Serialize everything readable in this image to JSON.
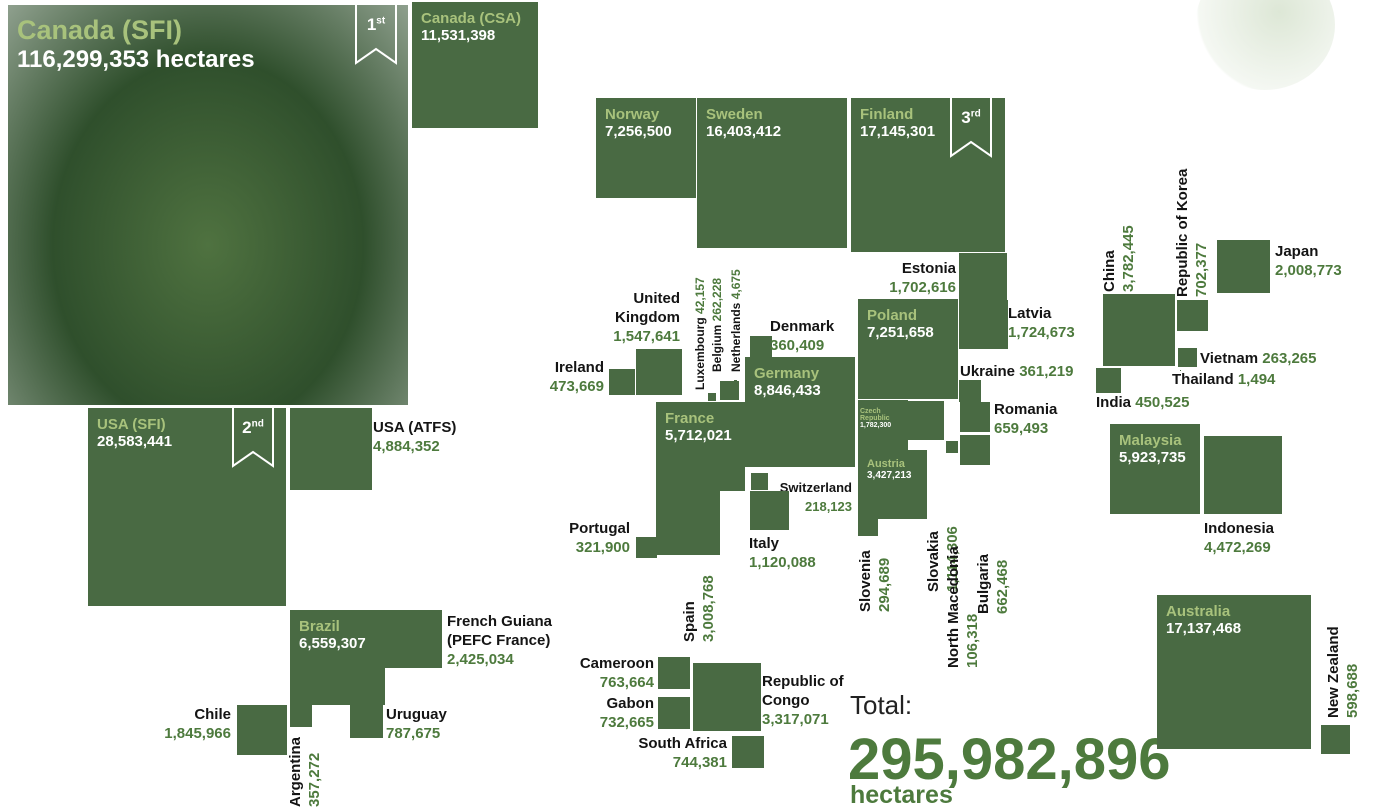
{
  "chart_data": {
    "type": "proportional-squares",
    "categories": [
      "Canada (SFI)",
      "Canada (CSA)",
      "Norway",
      "Sweden",
      "Finland",
      "USA (SFI)",
      "USA (ATFS)",
      "Estonia",
      "Latvia",
      "Poland",
      "Germany",
      "France",
      "United Kingdom",
      "Ireland",
      "Luxembourg",
      "Belgium",
      "Netherlands",
      "Denmark",
      "Switzerland",
      "Italy",
      "Portugal",
      "Spain",
      "Czech Republic",
      "Austria",
      "Slovakia",
      "North Macedonia",
      "Bulgaria",
      "Slovenia",
      "Ukraine",
      "Romania",
      "China",
      "Republic of Korea",
      "Japan",
      "Vietnam",
      "Thailand",
      "India",
      "Malaysia",
      "Indonesia",
      "Australia",
      "New Zealand",
      "Brazil",
      "French Guiana (PEFC France)",
      "Chile",
      "Argentina",
      "Uruguay",
      "Cameroon",
      "Gabon",
      "Republic of Congo",
      "South Africa"
    ],
    "values": [
      116299353,
      11531398,
      7256500,
      16403412,
      17145301,
      28583441,
      4884352,
      1702616,
      1724673,
      7251658,
      8846433,
      5712021,
      1547641,
      473669,
      42157,
      262228,
      4675,
      360409,
      218123,
      1120088,
      321900,
      3008768,
      1782300,
      3427213,
      1114306,
      106318,
      662468,
      294689,
      361219,
      659493,
      3782445,
      702377,
      2008773,
      263265,
      1494,
      450525,
      5923735,
      4472269,
      17137468,
      598688,
      6559307,
      2425034,
      1845966,
      357272,
      787675,
      763664,
      732665,
      3317071,
      744381
    ],
    "value_labels": [
      "116,299,353 hectares",
      "11,531,398",
      "7,256,500",
      "16,403,412",
      "17,145,301",
      "28,583,441",
      "4,884,352",
      "1,702,616",
      "1,724,673",
      "7,251,658",
      "8,846,433",
      "5,712,021",
      "1,547,641",
      "473,669",
      "42,157",
      "262,228",
      "4,675",
      "360,409",
      "218,123",
      "1,120,088",
      "321,900",
      "3,008,768",
      "1,782,300",
      "3,427,213",
      "1,114,306",
      "106,318",
      "662,468",
      "294,689",
      "361,219",
      "659,493",
      "3,782,445",
      "702,377",
      "2,008,773",
      "263,265",
      "1,494",
      "450,525",
      "5,923,735",
      "4,472,269",
      "17,137,468",
      "598,688",
      "6,559,307",
      "2,425,034",
      "1,845,966",
      "357,272",
      "787,675",
      "763,664",
      "732,665",
      "3,317,071",
      "744,381"
    ],
    "color": "#496a43",
    "ranks": [
      "1st",
      "2nd",
      "3rd"
    ],
    "total_label": "Total:",
    "total": 295982896,
    "total_value_label": "295,982,896",
    "unit_label": "hectares"
  }
}
